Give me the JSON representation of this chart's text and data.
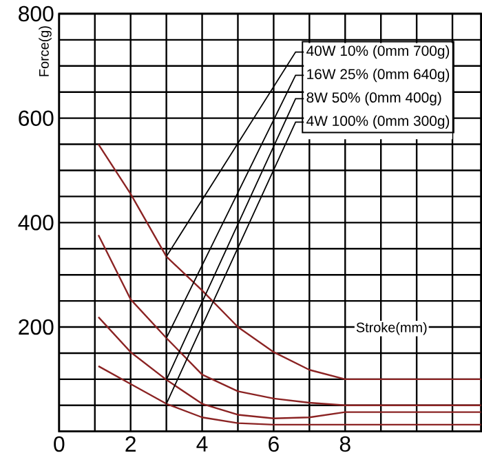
{
  "chart_data": {
    "type": "line",
    "xlabel": "Stroke(mm)",
    "ylabel": "Force(g)",
    "x": [
      1.1,
      2,
      3,
      4,
      5,
      6,
      7,
      8,
      11.8
    ],
    "series": [
      {
        "name": "40W 10% (0mm 700g)",
        "color": "#8b2323",
        "values": [
          550,
          455,
          335,
          270,
          200,
          152,
          118,
          100,
          100
        ]
      },
      {
        "name": "16W 25% (0mm 640g)",
        "color": "#8b2323",
        "values": [
          376,
          253,
          179,
          109,
          77,
          63,
          55,
          50,
          50
        ]
      },
      {
        "name": "8W 50% (0mm 400g)",
        "color": "#8b2323",
        "values": [
          219,
          152,
          99,
          53,
          32,
          25,
          27,
          37,
          37
        ]
      },
      {
        "name": "4W 100% (0mm 300g)",
        "color": "#8b2323",
        "values": [
          125,
          91,
          53,
          27,
          16,
          13,
          13,
          13,
          13
        ]
      }
    ],
    "xlim": [
      0,
      11.8
    ],
    "ylim": [
      0,
      800
    ],
    "xticks": [
      0,
      {
        "value": 1,
        "label": null
      },
      2,
      {
        "value": 3,
        "label": null
      },
      4,
      {
        "value": 5,
        "label": null
      },
      6,
      {
        "value": 7,
        "label": null
      },
      8,
      {
        "value": 9,
        "label": null
      },
      {
        "value": 10,
        "label": null
      },
      {
        "value": 11,
        "label": null
      }
    ],
    "yticks": [
      {
        "value": 0,
        "label": null
      },
      {
        "value": 50,
        "label": null
      },
      {
        "value": 100,
        "label": null
      },
      {
        "value": 150,
        "label": null
      },
      200,
      {
        "value": 250,
        "label": null
      },
      {
        "value": 300,
        "label": null
      },
      {
        "value": 350,
        "label": null
      },
      400,
      {
        "value": 450,
        "label": null
      },
      {
        "value": 500,
        "label": null
      },
      {
        "value": 550,
        "label": null
      },
      600,
      {
        "value": 650,
        "label": null
      },
      {
        "value": 700,
        "label": null
      },
      {
        "value": 750,
        "label": null
      },
      800
    ],
    "grid": true,
    "legend": "top right",
    "marker": "none",
    "line_style": "solid"
  }
}
